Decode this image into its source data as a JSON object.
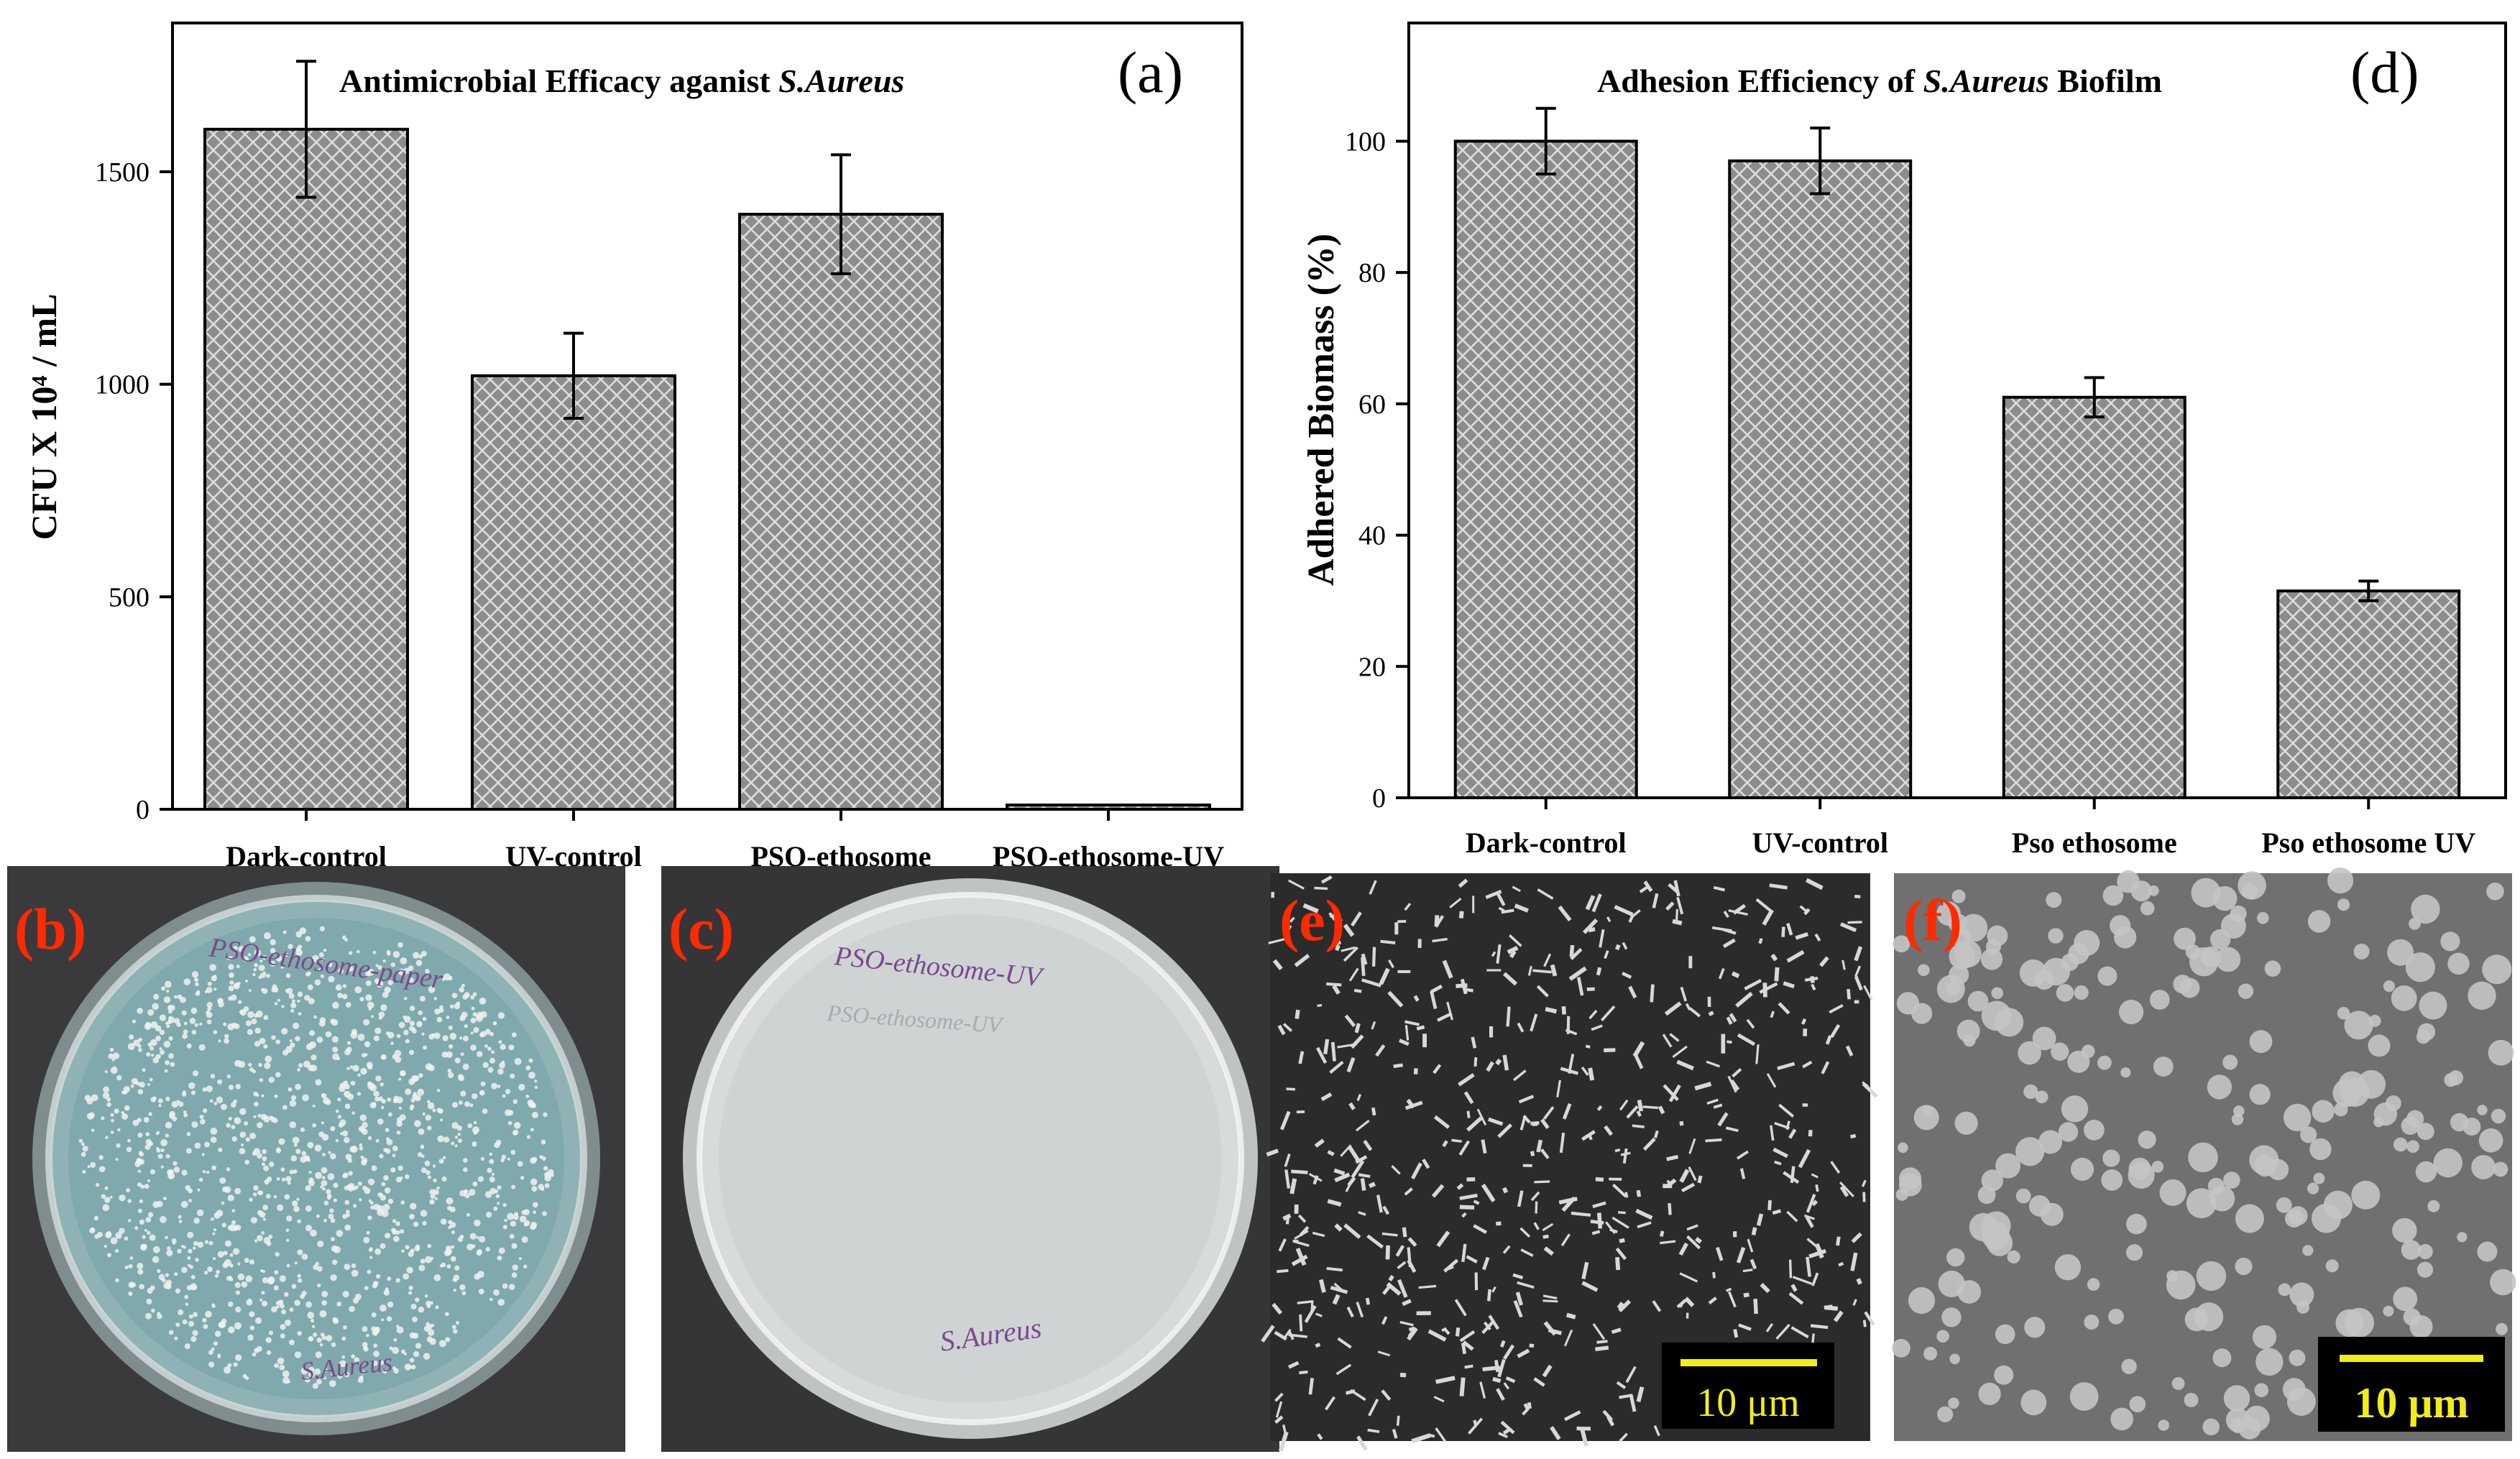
{
  "chart_data": [
    {
      "panel": "(a)",
      "type": "bar",
      "title_prefix": "Antimicrobial Efficacy aganist ",
      "title_italic": "S.Aureus",
      "xlabel": "",
      "ylabel": "CFU X 10⁴ / mL",
      "categories": [
        "Dark-control",
        "UV-control",
        "PSO-ethosome",
        "PSO-ethosome-UV"
      ],
      "values": [
        1600,
        1020,
        1400,
        10
      ],
      "errors": [
        160,
        100,
        140,
        0
      ],
      "yticks": [
        0,
        500,
        1000,
        1500
      ],
      "ylim": [
        0,
        1850
      ],
      "grid": false,
      "legend": "none"
    },
    {
      "panel": "(d)",
      "type": "bar",
      "title_prefix": "Adhesion Efficiency of ",
      "title_italic": "S.Aureus",
      "title_suffix": " Biofilm",
      "xlabel": "",
      "ylabel": "Adhered Biomass (%)",
      "categories": [
        "Dark-control",
        "UV-control",
        "Pso ethosome",
        "Pso ethosome UV"
      ],
      "values": [
        100,
        97,
        61,
        31.5
      ],
      "errors": [
        5,
        5,
        3,
        1.5
      ],
      "yticks": [
        0,
        20,
        40,
        60,
        80,
        100
      ],
      "ylim": [
        0,
        118
      ],
      "grid": false,
      "legend": "none"
    }
  ],
  "photos": [
    {
      "label": "(b)",
      "plate_text": "PSO-ethosome-paper",
      "bottom_text": "S.Aureus"
    },
    {
      "label": "(c)",
      "plate_text": "PSO-ethosome-UV",
      "faint_text": "PSO-ethosome-UV",
      "bottom_text": "S.Aureus"
    },
    {
      "label": "(e)",
      "scale_bar": "10 μm"
    },
    {
      "label": "(f)",
      "scale_bar": "10 μm"
    }
  ],
  "colors": {
    "bar_fill": "#8c8c8c",
    "hatch": "#dcdcdc",
    "panel_label_red": "#ff2a00",
    "scale_bar": "#f2ec1a"
  }
}
